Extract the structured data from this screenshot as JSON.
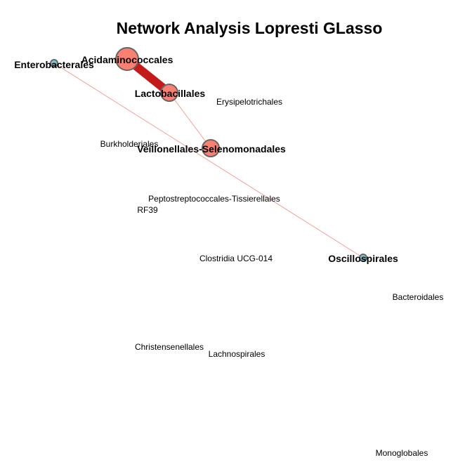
{
  "title": "Network Analysis Lopresti GLasso",
  "colors": {
    "positive_node": "#fa8072",
    "negative_node": "#7ec8d4",
    "node_stroke": "#666666",
    "strong_edge": "#c41a1a",
    "weak_edge": "#f4a09a"
  },
  "nodes": [
    {
      "id": "acidaminococcales",
      "label": "Acidaminococcales",
      "bold": true,
      "sign": "positive"
    },
    {
      "id": "enterobacterales",
      "label": "Enterobacterales",
      "bold": true,
      "sign": "negative"
    },
    {
      "id": "lactobacillales",
      "label": "Lactobacillales",
      "bold": true,
      "sign": "positive"
    },
    {
      "id": "erysipelotrichales",
      "label": "Erysipelotrichales",
      "bold": false
    },
    {
      "id": "burkholderiales",
      "label": "Burkholderiales",
      "bold": false
    },
    {
      "id": "veillonellales",
      "label": "Veillonellales-Selenomonadales",
      "bold": true,
      "sign": "positive"
    },
    {
      "id": "peptostreptococcales",
      "label": "Peptostreptococcales-Tissierellales",
      "bold": false
    },
    {
      "id": "rf39",
      "label": "RF39",
      "bold": false
    },
    {
      "id": "clostridia",
      "label": "Clostridia UCG-014",
      "bold": false
    },
    {
      "id": "oscillospirales",
      "label": "Oscillospirales",
      "bold": true,
      "sign": "negative"
    },
    {
      "id": "bacteroidales",
      "label": "Bacteroidales",
      "bold": false
    },
    {
      "id": "christensenellales",
      "label": "Christensenellales",
      "bold": false
    },
    {
      "id": "lachnospirales",
      "label": "Lachnospirales",
      "bold": false
    },
    {
      "id": "monoglobales",
      "label": "Monoglobales",
      "bold": false
    }
  ],
  "edges": [
    {
      "from": "acidaminococcales",
      "to": "lactobacillales",
      "strength": "strong"
    },
    {
      "from": "lactobacillales",
      "to": "veillonellales",
      "strength": "weak"
    },
    {
      "from": "enterobacterales",
      "to": "oscillospirales",
      "strength": "weak"
    }
  ]
}
